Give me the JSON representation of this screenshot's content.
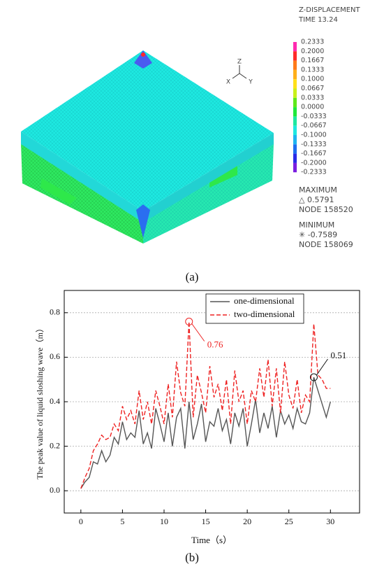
{
  "figure_a": {
    "panel_label": "(a)",
    "title": "Z-DISPLACEMENT",
    "time": "TIME 13.24",
    "axes": [
      "Z",
      "X",
      "Y"
    ],
    "legend_labels": [
      "0.2333",
      "0.2000",
      "0.1667",
      "0.1333",
      "0.1000",
      "0.0667",
      "0.0333",
      "0.0000",
      "-0.0333",
      "-0.0667",
      "-0.1000",
      "-0.1333",
      "-0.1667",
      "-0.2000",
      "-0.2333"
    ],
    "legend_colors": [
      "#ff2ab0",
      "#ff2a2a",
      "#ff7a1a",
      "#ffb01a",
      "#ffe01a",
      "#c8f01a",
      "#5ee81a",
      "#1ee83a",
      "#1ee8a0",
      "#1ee8e0",
      "#1eb4f0",
      "#1e6ef0",
      "#2a2ae8",
      "#7a1ee0"
    ],
    "maximum": [
      "MAXIMUM",
      "△ 0.5791",
      "NODE 158520"
    ],
    "minimum": [
      "MINIMUM",
      "✳ -0.7589",
      "NODE 158069"
    ]
  },
  "chart_data": {
    "type": "line",
    "panel_label": "(b)",
    "xlabel": "Time（s）",
    "ylabel": "The peak value of liquid sloshing wave（m）",
    "xlim": [
      -2,
      33.5
    ],
    "ylim": [
      -0.1,
      0.9
    ],
    "xticks": [
      0,
      5,
      10,
      15,
      20,
      25,
      30
    ],
    "yticks": [
      {
        "value": 0,
        "label": "0.0"
      },
      0.2,
      0.4,
      0.6,
      0.8
    ],
    "grid": true,
    "legend": "upper right",
    "x": [
      0,
      0.5,
      1,
      1.5,
      2,
      2.5,
      3,
      3.5,
      4,
      4.5,
      5,
      5.5,
      6,
      6.5,
      7,
      7.5,
      8,
      8.5,
      9,
      9.5,
      10,
      10.5,
      11,
      11.5,
      12,
      12.5,
      13,
      13.5,
      14,
      14.5,
      15,
      15.5,
      16,
      16.5,
      17,
      17.5,
      18,
      18.5,
      19,
      19.5,
      20,
      20.5,
      21,
      21.5,
      22,
      22.5,
      23,
      23.5,
      24,
      24.5,
      25,
      25.5,
      26,
      26.5,
      27,
      27.5,
      28,
      28.5,
      29,
      29.5,
      30
    ],
    "series": [
      {
        "name": "one-dimensional",
        "color": "#555555",
        "linestyle": "solid",
        "values": [
          0.01,
          0.04,
          0.06,
          0.13,
          0.12,
          0.18,
          0.13,
          0.16,
          0.24,
          0.21,
          0.31,
          0.23,
          0.26,
          0.24,
          0.36,
          0.21,
          0.26,
          0.19,
          0.37,
          0.3,
          0.22,
          0.35,
          0.2,
          0.33,
          0.37,
          0.19,
          0.4,
          0.23,
          0.3,
          0.39,
          0.22,
          0.31,
          0.29,
          0.37,
          0.27,
          0.32,
          0.21,
          0.35,
          0.29,
          0.37,
          0.2,
          0.3,
          0.41,
          0.26,
          0.35,
          0.28,
          0.38,
          0.24,
          0.36,
          0.3,
          0.34,
          0.28,
          0.37,
          0.31,
          0.3,
          0.35,
          0.51,
          0.45,
          0.39,
          0.33,
          0.4
        ]
      },
      {
        "name": "two-dimensional",
        "color": "#ee2222",
        "linestyle": "dashed",
        "values": [
          0.01,
          0.06,
          0.1,
          0.18,
          0.21,
          0.25,
          0.23,
          0.24,
          0.3,
          0.27,
          0.38,
          0.32,
          0.36,
          0.3,
          0.45,
          0.32,
          0.4,
          0.3,
          0.45,
          0.38,
          0.3,
          0.48,
          0.33,
          0.58,
          0.44,
          0.38,
          0.76,
          0.33,
          0.52,
          0.44,
          0.35,
          0.56,
          0.42,
          0.48,
          0.36,
          0.5,
          0.3,
          0.54,
          0.4,
          0.45,
          0.3,
          0.45,
          0.4,
          0.55,
          0.42,
          0.59,
          0.38,
          0.55,
          0.35,
          0.58,
          0.43,
          0.37,
          0.5,
          0.35,
          0.43,
          0.4,
          0.75,
          0.52,
          0.5,
          0.46,
          0.46
        ]
      }
    ],
    "annotations": [
      {
        "text": "0.76",
        "series": 1,
        "index": 26,
        "color": "#ee2222"
      },
      {
        "text": "0.51",
        "series": 0,
        "index": 56,
        "color": "#111111"
      }
    ]
  }
}
